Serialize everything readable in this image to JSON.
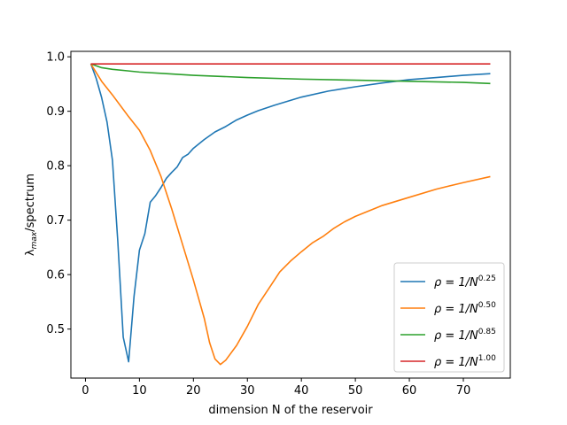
{
  "chart_data": {
    "type": "line",
    "xlabel": "dimension N of the reservoir",
    "ylabel": "λ_max/spectrum",
    "xlim": [
      -2.7,
      78.7
    ],
    "ylim": [
      0.41,
      1.01
    ],
    "xticks": [
      0,
      10,
      20,
      30,
      40,
      50,
      60,
      70
    ],
    "yticks": [
      0.5,
      0.6,
      0.7,
      0.8,
      0.9,
      1.0
    ],
    "ytick_labels": [
      "0.5",
      "0.6",
      "0.7",
      "0.8",
      "0.9",
      "1.0"
    ],
    "grid": false,
    "legend_position": "lower right",
    "series": [
      {
        "name": "ρ = 1/N^0.25",
        "label_base": "ρ = 1/N",
        "label_exp": "0.25",
        "color": "#1f77b4",
        "points": [
          [
            1,
            0.987
          ],
          [
            2,
            0.96
          ],
          [
            3,
            0.925
          ],
          [
            4,
            0.88
          ],
          [
            5,
            0.81
          ],
          [
            6,
            0.66
          ],
          [
            7,
            0.485
          ],
          [
            8,
            0.44
          ],
          [
            9,
            0.56
          ],
          [
            10,
            0.645
          ],
          [
            11,
            0.675
          ],
          [
            12,
            0.733
          ],
          [
            13,
            0.745
          ],
          [
            14,
            0.76
          ],
          [
            15,
            0.777
          ],
          [
            16,
            0.788
          ],
          [
            17,
            0.798
          ],
          [
            18,
            0.815
          ],
          [
            19,
            0.821
          ],
          [
            20,
            0.832
          ],
          [
            22,
            0.848
          ],
          [
            24,
            0.862
          ],
          [
            26,
            0.872
          ],
          [
            28,
            0.884
          ],
          [
            30,
            0.893
          ],
          [
            32,
            0.901
          ],
          [
            35,
            0.911
          ],
          [
            40,
            0.926
          ],
          [
            45,
            0.937
          ],
          [
            50,
            0.945
          ],
          [
            55,
            0.952
          ],
          [
            60,
            0.958
          ],
          [
            65,
            0.962
          ],
          [
            70,
            0.966
          ],
          [
            75,
            0.969
          ]
        ]
      },
      {
        "name": "ρ = 1/N^0.50",
        "label_base": "ρ = 1/N",
        "label_exp": "0.50",
        "color": "#ff7f0e",
        "points": [
          [
            1,
            0.987
          ],
          [
            3,
            0.955
          ],
          [
            5,
            0.93
          ],
          [
            8,
            0.89
          ],
          [
            10,
            0.865
          ],
          [
            12,
            0.828
          ],
          [
            14,
            0.78
          ],
          [
            16,
            0.72
          ],
          [
            18,
            0.655
          ],
          [
            20,
            0.59
          ],
          [
            22,
            0.52
          ],
          [
            23,
            0.475
          ],
          [
            24,
            0.445
          ],
          [
            25,
            0.435
          ],
          [
            26,
            0.443
          ],
          [
            28,
            0.47
          ],
          [
            30,
            0.505
          ],
          [
            32,
            0.545
          ],
          [
            34,
            0.575
          ],
          [
            36,
            0.605
          ],
          [
            38,
            0.625
          ],
          [
            40,
            0.642
          ],
          [
            42,
            0.658
          ],
          [
            44,
            0.67
          ],
          [
            46,
            0.685
          ],
          [
            48,
            0.697
          ],
          [
            50,
            0.707
          ],
          [
            55,
            0.727
          ],
          [
            60,
            0.742
          ],
          [
            65,
            0.757
          ],
          [
            70,
            0.769
          ],
          [
            75,
            0.78
          ]
        ]
      },
      {
        "name": "ρ = 1/N^0.85",
        "label_base": "ρ = 1/N",
        "label_exp": "0.85",
        "color": "#2ca02c",
        "points": [
          [
            1,
            0.987
          ],
          [
            3,
            0.98
          ],
          [
            5,
            0.977
          ],
          [
            8,
            0.974
          ],
          [
            10,
            0.972
          ],
          [
            15,
            0.969
          ],
          [
            20,
            0.966
          ],
          [
            25,
            0.964
          ],
          [
            30,
            0.962
          ],
          [
            40,
            0.959
          ],
          [
            50,
            0.957
          ],
          [
            60,
            0.955
          ],
          [
            70,
            0.953
          ],
          [
            75,
            0.951
          ]
        ]
      },
      {
        "name": "ρ = 1/N^1.00",
        "label_base": "ρ = 1/N",
        "label_exp": "1.00",
        "color": "#d62728",
        "points": [
          [
            1,
            0.987
          ],
          [
            75,
            0.987
          ]
        ]
      }
    ]
  }
}
